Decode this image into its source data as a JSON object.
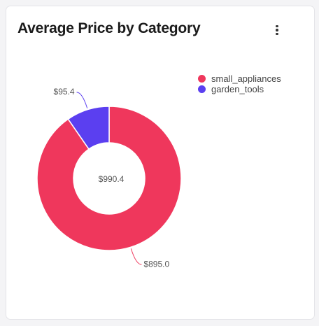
{
  "card": {
    "title": "Average Price by Category",
    "menu_icon": "vertical-ellipsis-icon"
  },
  "chart_data": {
    "type": "pie",
    "subtype": "donut",
    "title": "Average Price by Category",
    "center_label": "$990.4",
    "legend_position": "top-right",
    "slices": [
      {
        "name": "small_appliances",
        "value": 895.0,
        "label": "$895.0",
        "color": "#ef375c"
      },
      {
        "name": "garden_tools",
        "value": 95.4,
        "label": "$95.4",
        "color": "#5b3ff0"
      }
    ]
  }
}
